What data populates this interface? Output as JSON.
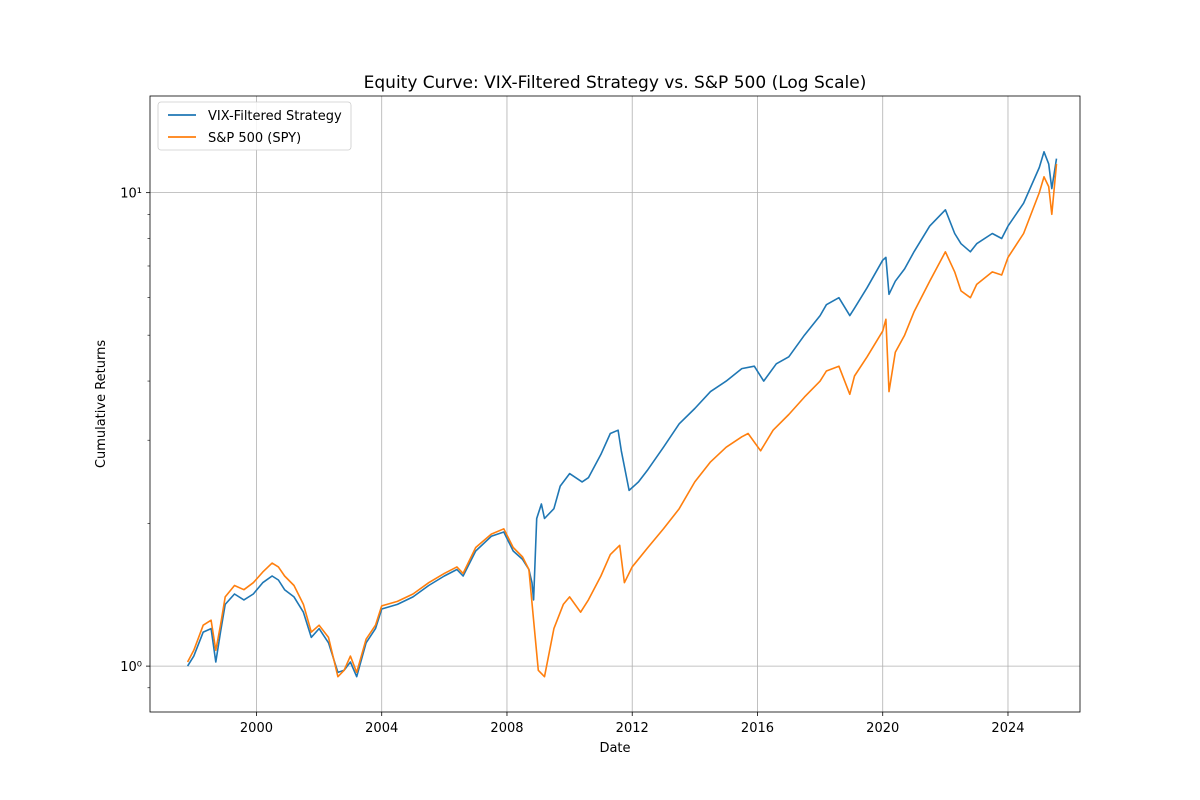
{
  "chart_data": {
    "type": "line",
    "title": "Equity Curve: VIX-Filtered Strategy vs. S&P 500 (Log Scale)",
    "xlabel": "Date",
    "ylabel": "Cumulative Returns",
    "y_scale": "log",
    "xlim": [
      1996.6,
      2026.3
    ],
    "ylim": [
      0.8,
      16.0
    ],
    "x_ticks": [
      2000,
      2004,
      2008,
      2012,
      2016,
      2020,
      2024
    ],
    "x_tick_labels": [
      "2000",
      "2004",
      "2008",
      "2012",
      "2016",
      "2020",
      "2024"
    ],
    "y_ticks": [
      1,
      10
    ],
    "y_tick_labels": [
      "10⁰",
      "10¹"
    ],
    "grid": true,
    "legend_position": "upper-left",
    "series": [
      {
        "name": "VIX-Filtered Strategy",
        "color": "#1f77b4",
        "x": [
          1997.8,
          1998.0,
          1998.3,
          1998.55,
          1998.7,
          1998.85,
          1999.0,
          1999.3,
          1999.6,
          1999.9,
          2000.2,
          2000.5,
          2000.7,
          2000.9,
          2001.2,
          2001.5,
          2001.75,
          2002.0,
          2002.3,
          2002.6,
          2002.8,
          2003.0,
          2003.2,
          2003.5,
          2003.8,
          2004.0,
          2004.5,
          2005.0,
          2005.5,
          2006.0,
          2006.4,
          2006.6,
          2007.0,
          2007.5,
          2007.9,
          2008.2,
          2008.5,
          2008.7,
          2008.8,
          2008.85,
          2008.95,
          2009.1,
          2009.2,
          2009.5,
          2009.7,
          2010.0,
          2010.4,
          2010.6,
          2011.0,
          2011.3,
          2011.55,
          2011.65,
          2011.9,
          2012.2,
          2012.5,
          2013.0,
          2013.5,
          2014.0,
          2014.5,
          2015.0,
          2015.5,
          2015.9,
          2016.2,
          2016.6,
          2017.0,
          2017.5,
          2018.0,
          2018.2,
          2018.6,
          2018.95,
          2019.1,
          2019.5,
          2020.0,
          2020.1,
          2020.2,
          2020.4,
          2020.7,
          2021.0,
          2021.5,
          2022.0,
          2022.3,
          2022.5,
          2022.8,
          2023.0,
          2023.5,
          2023.8,
          2024.0,
          2024.5,
          2025.0,
          2025.15,
          2025.3,
          2025.4,
          2025.55
        ],
        "y": [
          1.0,
          1.05,
          1.18,
          1.2,
          1.02,
          1.18,
          1.35,
          1.42,
          1.38,
          1.42,
          1.5,
          1.55,
          1.52,
          1.45,
          1.4,
          1.3,
          1.15,
          1.2,
          1.12,
          0.97,
          0.98,
          1.02,
          0.95,
          1.12,
          1.2,
          1.32,
          1.35,
          1.4,
          1.48,
          1.55,
          1.6,
          1.55,
          1.75,
          1.88,
          1.92,
          1.75,
          1.68,
          1.6,
          1.5,
          1.38,
          2.05,
          2.2,
          2.05,
          2.15,
          2.4,
          2.55,
          2.45,
          2.5,
          2.8,
          3.1,
          3.15,
          2.85,
          2.35,
          2.45,
          2.6,
          2.9,
          3.25,
          3.5,
          3.8,
          4.0,
          4.25,
          4.3,
          4.0,
          4.35,
          4.5,
          5.0,
          5.5,
          5.8,
          6.0,
          5.5,
          5.7,
          6.3,
          7.2,
          7.3,
          6.1,
          6.5,
          6.9,
          7.5,
          8.5,
          9.2,
          8.2,
          7.8,
          7.5,
          7.8,
          8.2,
          8.0,
          8.5,
          9.5,
          11.3,
          12.2,
          11.5,
          10.2,
          11.8
        ]
      },
      {
        "name": "S&P 500 (SPY)",
        "color": "#ff7f0e",
        "x": [
          1997.8,
          1998.0,
          1998.3,
          1998.55,
          1998.7,
          1998.85,
          1999.0,
          1999.3,
          1999.6,
          1999.9,
          2000.2,
          2000.5,
          2000.7,
          2000.9,
          2001.2,
          2001.5,
          2001.75,
          2002.0,
          2002.3,
          2002.6,
          2002.8,
          2003.0,
          2003.2,
          2003.5,
          2003.8,
          2004.0,
          2004.5,
          2005.0,
          2005.5,
          2006.0,
          2006.4,
          2006.6,
          2007.0,
          2007.5,
          2007.9,
          2008.2,
          2008.5,
          2008.7,
          2008.85,
          2009.0,
          2009.2,
          2009.5,
          2009.8,
          2010.0,
          2010.35,
          2010.6,
          2011.0,
          2011.3,
          2011.6,
          2011.75,
          2012.0,
          2012.5,
          2013.0,
          2013.5,
          2014.0,
          2014.5,
          2015.0,
          2015.5,
          2015.7,
          2016.1,
          2016.5,
          2017.0,
          2017.5,
          2018.0,
          2018.2,
          2018.6,
          2018.95,
          2019.1,
          2019.5,
          2020.0,
          2020.1,
          2020.2,
          2020.4,
          2020.7,
          2021.0,
          2021.5,
          2022.0,
          2022.3,
          2022.5,
          2022.8,
          2023.0,
          2023.5,
          2023.8,
          2024.0,
          2024.5,
          2025.0,
          2025.15,
          2025.3,
          2025.4,
          2025.55
        ],
        "y": [
          1.02,
          1.08,
          1.22,
          1.25,
          1.08,
          1.22,
          1.4,
          1.48,
          1.45,
          1.5,
          1.58,
          1.65,
          1.62,
          1.55,
          1.48,
          1.35,
          1.18,
          1.22,
          1.15,
          0.95,
          0.98,
          1.05,
          0.97,
          1.14,
          1.22,
          1.34,
          1.37,
          1.42,
          1.5,
          1.57,
          1.62,
          1.57,
          1.78,
          1.9,
          1.95,
          1.78,
          1.7,
          1.6,
          1.25,
          0.98,
          0.95,
          1.2,
          1.35,
          1.4,
          1.3,
          1.38,
          1.55,
          1.72,
          1.8,
          1.5,
          1.62,
          1.78,
          1.95,
          2.15,
          2.45,
          2.7,
          2.9,
          3.05,
          3.1,
          2.85,
          3.15,
          3.4,
          3.7,
          4.0,
          4.2,
          4.3,
          3.75,
          4.1,
          4.5,
          5.1,
          5.4,
          3.8,
          4.6,
          5.0,
          5.6,
          6.5,
          7.5,
          6.8,
          6.2,
          6.0,
          6.4,
          6.8,
          6.7,
          7.3,
          8.2,
          10.0,
          10.8,
          10.3,
          9.0,
          11.5
        ]
      }
    ]
  }
}
